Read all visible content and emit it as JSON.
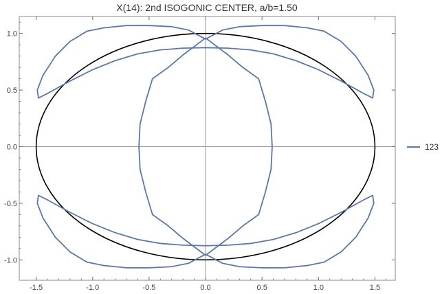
{
  "chart_data": {
    "type": "line",
    "title": "X(14): 2nd ISOGONIC CENTER, a/b=1.50",
    "xlabel": "",
    "ylabel": "",
    "xlim": [
      -1.65,
      1.68
    ],
    "ylim": [
      -1.18,
      1.15
    ],
    "x_ticks": [
      -1.5,
      -1.0,
      -0.5,
      0.0,
      0.5,
      1.0,
      1.5
    ],
    "x_tick_labels": [
      "-1.5",
      "-1.0",
      "-0.5",
      "0.0",
      "0.5",
      "1.0",
      "1.5"
    ],
    "y_ticks": [
      -1.0,
      -0.5,
      0.0,
      0.5,
      1.0
    ],
    "y_tick_labels": [
      "-1.0",
      "-0.5",
      "0.0",
      "0.5",
      "1.0"
    ],
    "grid": false,
    "legend_position": "right",
    "colors": {
      "ellipse": "#000000",
      "series": "#5a78aa",
      "axis": "#999999",
      "frame": "#888888"
    },
    "ellipse": {
      "a": 1.5,
      "b": 1.0
    },
    "series": [
      {
        "name": "123",
        "segments": [
          [
            [
              0.0,
              0.95
            ],
            [
              0.15,
              1.03
            ],
            [
              0.3,
              1.06
            ],
            [
              0.5,
              1.07
            ],
            [
              0.7,
              1.07
            ],
            [
              0.9,
              1.05
            ],
            [
              1.05,
              1.02
            ],
            [
              1.2,
              0.93
            ],
            [
              1.33,
              0.8
            ],
            [
              1.44,
              0.63
            ],
            [
              1.49,
              0.5
            ],
            [
              1.48,
              0.43
            ],
            [
              1.4,
              0.47
            ],
            [
              1.2,
              0.58
            ],
            [
              1.0,
              0.68
            ],
            [
              0.8,
              0.76
            ],
            [
              0.6,
              0.82
            ],
            [
              0.4,
              0.855
            ],
            [
              0.2,
              0.87
            ],
            [
              0.0,
              0.875
            ],
            [
              -0.2,
              0.87
            ],
            [
              -0.4,
              0.855
            ],
            [
              -0.6,
              0.82
            ],
            [
              -0.8,
              0.76
            ],
            [
              -1.0,
              0.68
            ],
            [
              -1.2,
              0.58
            ],
            [
              -1.4,
              0.47
            ],
            [
              -1.48,
              0.43
            ],
            [
              -1.49,
              0.5
            ],
            [
              -1.44,
              0.63
            ],
            [
              -1.33,
              0.8
            ],
            [
              -1.2,
              0.93
            ],
            [
              -1.05,
              1.02
            ],
            [
              -0.9,
              1.05
            ],
            [
              -0.7,
              1.07
            ],
            [
              -0.5,
              1.07
            ],
            [
              -0.3,
              1.06
            ],
            [
              -0.15,
              1.03
            ],
            [
              0.0,
              0.95
            ]
          ],
          [
            [
              0.0,
              -0.95
            ],
            [
              0.15,
              -1.03
            ],
            [
              0.3,
              -1.06
            ],
            [
              0.5,
              -1.07
            ],
            [
              0.7,
              -1.07
            ],
            [
              0.9,
              -1.05
            ],
            [
              1.05,
              -1.02
            ],
            [
              1.2,
              -0.93
            ],
            [
              1.33,
              -0.8
            ],
            [
              1.44,
              -0.63
            ],
            [
              1.49,
              -0.5
            ],
            [
              1.48,
              -0.43
            ],
            [
              1.4,
              -0.47
            ],
            [
              1.2,
              -0.58
            ],
            [
              1.0,
              -0.68
            ],
            [
              0.8,
              -0.76
            ],
            [
              0.6,
              -0.82
            ],
            [
              0.4,
              -0.855
            ],
            [
              0.2,
              -0.87
            ],
            [
              0.0,
              -0.875
            ],
            [
              -0.2,
              -0.87
            ],
            [
              -0.4,
              -0.855
            ],
            [
              -0.6,
              -0.82
            ],
            [
              -0.8,
              -0.76
            ],
            [
              -1.0,
              -0.68
            ],
            [
              -1.2,
              -0.58
            ],
            [
              -1.4,
              -0.47
            ],
            [
              -1.48,
              -0.43
            ],
            [
              -1.49,
              -0.5
            ],
            [
              -1.44,
              -0.63
            ],
            [
              -1.33,
              -0.8
            ],
            [
              -1.2,
              -0.93
            ],
            [
              -1.05,
              -1.02
            ],
            [
              -0.9,
              -1.05
            ],
            [
              -0.7,
              -1.07
            ],
            [
              -0.5,
              -1.07
            ],
            [
              -0.3,
              -1.06
            ],
            [
              -0.15,
              -1.03
            ],
            [
              0.0,
              -0.95
            ]
          ],
          [
            [
              0.0,
              0.96
            ],
            [
              0.2,
              0.81
            ],
            [
              0.33,
              0.7
            ],
            [
              0.47,
              0.6
            ],
            [
              0.53,
              0.4
            ],
            [
              0.58,
              0.2
            ],
            [
              0.59,
              0.0
            ],
            [
              0.58,
              -0.2
            ],
            [
              0.53,
              -0.4
            ],
            [
              0.47,
              -0.6
            ],
            [
              0.33,
              -0.7
            ],
            [
              0.2,
              -0.81
            ],
            [
              0.0,
              -0.96
            ],
            [
              -0.2,
              -0.81
            ],
            [
              -0.33,
              -0.7
            ],
            [
              -0.47,
              -0.6
            ],
            [
              -0.53,
              -0.4
            ],
            [
              -0.58,
              -0.2
            ],
            [
              -0.59,
              0.0
            ],
            [
              -0.58,
              0.2
            ],
            [
              -0.53,
              0.4
            ],
            [
              -0.47,
              0.6
            ],
            [
              -0.33,
              0.7
            ],
            [
              -0.2,
              0.81
            ],
            [
              0.0,
              0.96
            ]
          ]
        ]
      }
    ]
  }
}
